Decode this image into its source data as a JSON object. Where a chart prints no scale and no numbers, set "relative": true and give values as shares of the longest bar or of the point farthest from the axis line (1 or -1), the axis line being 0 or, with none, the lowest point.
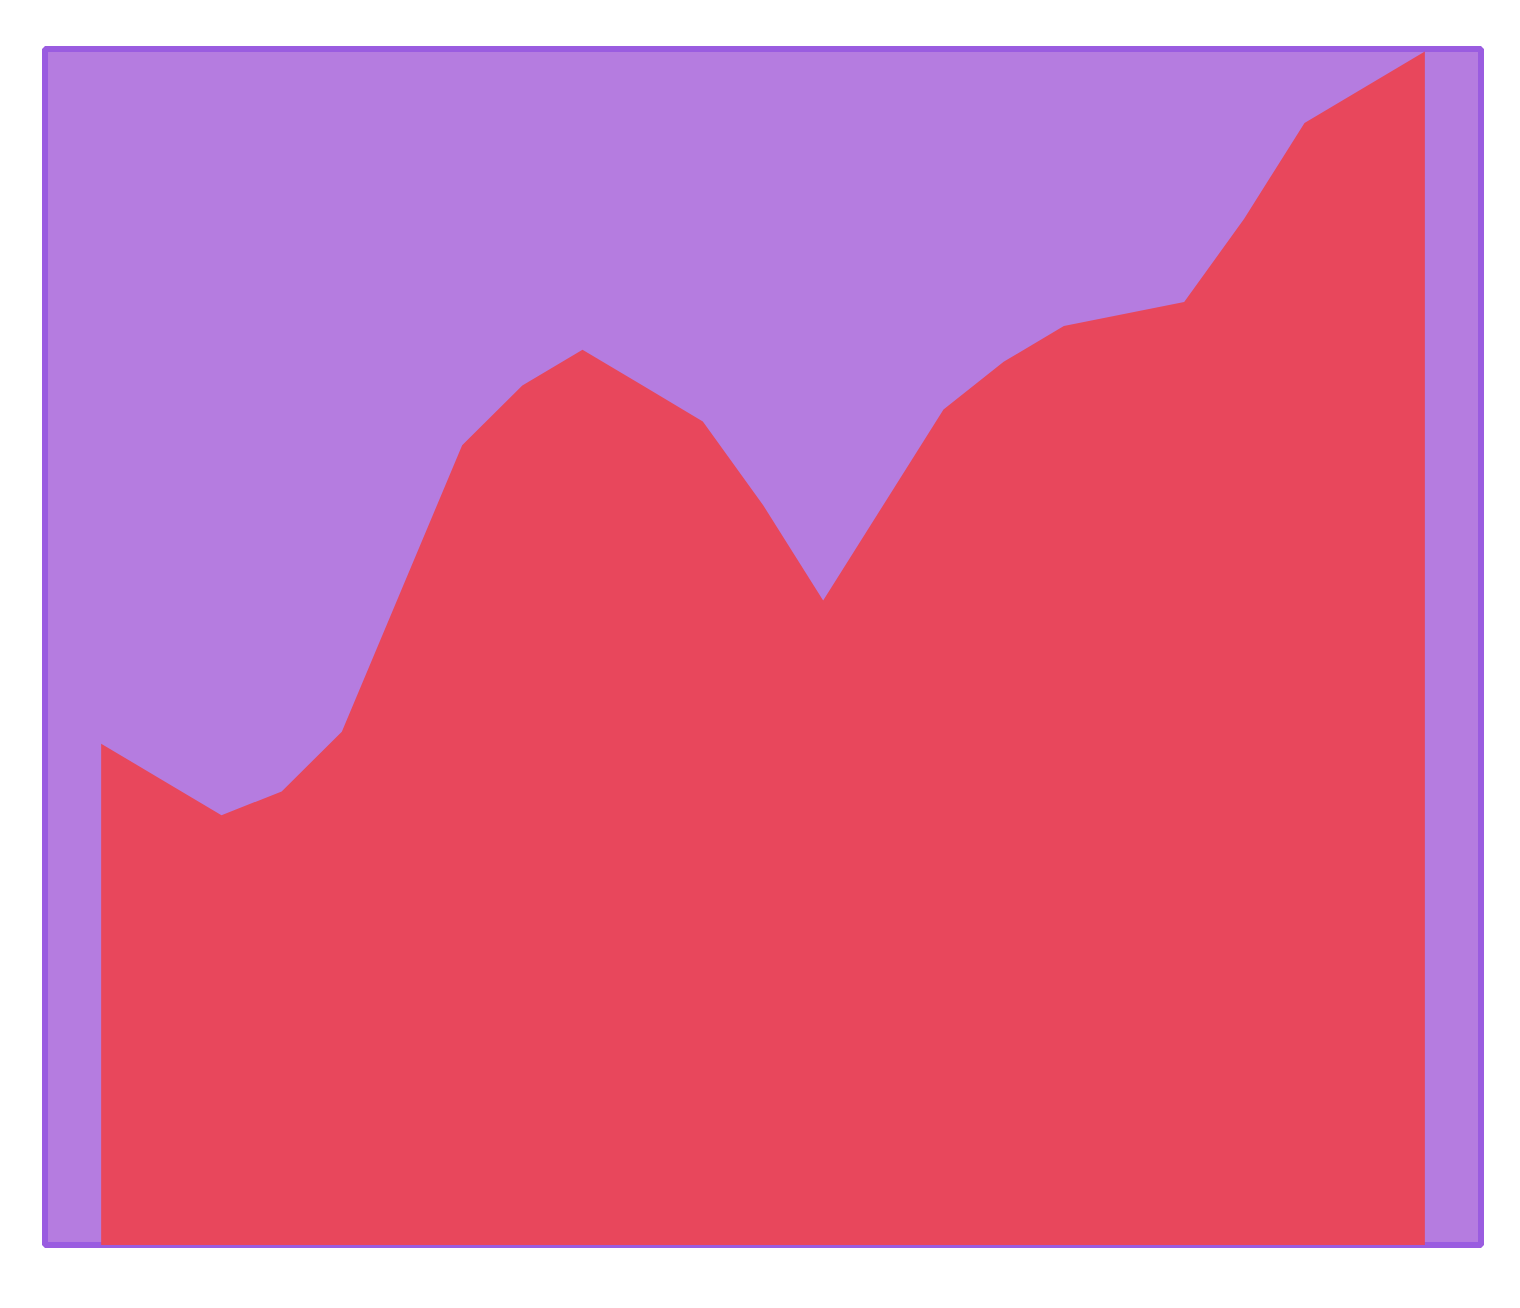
{
  "chart_data": {
    "type": "area",
    "relative": true,
    "grid": false,
    "categories": [
      null,
      null,
      null,
      null,
      null,
      null,
      null,
      null,
      null,
      null,
      null,
      null,
      null,
      null,
      null,
      null,
      null,
      null,
      null,
      null,
      null,
      null,
      null
    ],
    "series": [
      {
        "color": "#e8475c",
        "values": [
          0.42,
          0.39,
          0.36,
          0.38,
          0.43,
          0.55,
          0.67,
          0.72,
          0.75,
          0.72,
          0.69,
          0.62,
          0.54,
          0.62,
          0.7,
          0.74,
          0.77,
          0.78,
          0.79,
          0.86,
          0.94,
          0.97,
          1.0
        ]
      }
    ]
  }
}
